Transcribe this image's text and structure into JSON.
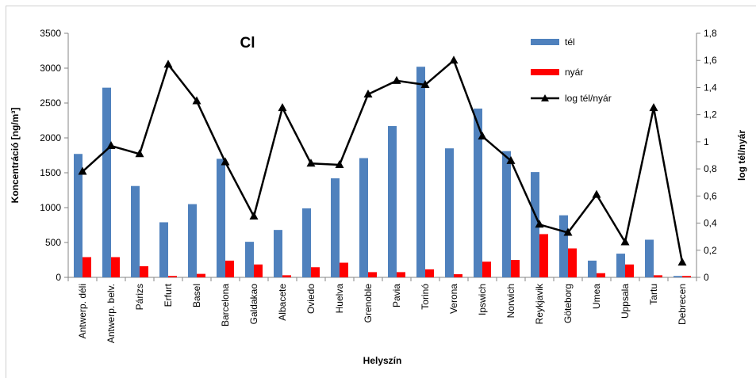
{
  "chart_data": {
    "type": "bar",
    "title": "Cl",
    "xlabel": "Helyszín",
    "ylabel": "Koncentráció [ng/m³]",
    "y2label": "log tél/nyár",
    "ylim": [
      0,
      3500
    ],
    "y2lim": [
      0,
      1.8
    ],
    "yticks": [
      "0",
      "500",
      "1000",
      "1500",
      "2000",
      "2500",
      "3000",
      "3500"
    ],
    "y2ticks": [
      "0",
      "0,2",
      "0,4",
      "0,6",
      "0,8",
      "1",
      "1,2",
      "1,4",
      "1,6",
      "1,8"
    ],
    "grid": false,
    "legend_position": "top-right",
    "categories": [
      "Antwerp. déli",
      "Antwerp. belv.",
      "Párizs",
      "Erfurt",
      "Basel",
      "Barcelona",
      "Galdakao",
      "Albacete",
      "Oviedo",
      "Huelva",
      "Grenoble",
      "Pavia",
      "Torinó",
      "Verona",
      "Ipswich",
      "Norwich",
      "Reykjavik",
      "Göteborg",
      "Umea",
      "Uppsala",
      "Tartu",
      "Debrecen"
    ],
    "series": [
      {
        "name": "tél",
        "type": "bar",
        "axis": "left",
        "color": "#4f81bd",
        "values": [
          1770,
          2720,
          1310,
          790,
          1050,
          1700,
          510,
          680,
          990,
          1420,
          1710,
          2170,
          3020,
          1850,
          2420,
          1810,
          1510,
          890,
          240,
          340,
          540,
          20
        ]
      },
      {
        "name": "nyár",
        "type": "bar",
        "axis": "left",
        "color": "#ff0000",
        "values": [
          290,
          290,
          160,
          20,
          50,
          240,
          185,
          30,
          145,
          210,
          75,
          75,
          115,
          45,
          225,
          250,
          620,
          415,
          60,
          185,
          30,
          20
        ]
      },
      {
        "name": "log tél/nyár",
        "type": "line",
        "axis": "right",
        "color": "#000000",
        "values": [
          0.78,
          0.97,
          0.91,
          1.57,
          1.3,
          0.85,
          0.45,
          1.25,
          0.84,
          0.83,
          1.35,
          1.45,
          1.42,
          1.6,
          1.04,
          0.86,
          0.39,
          0.33,
          0.61,
          0.26,
          1.25,
          0.11
        ]
      }
    ]
  }
}
